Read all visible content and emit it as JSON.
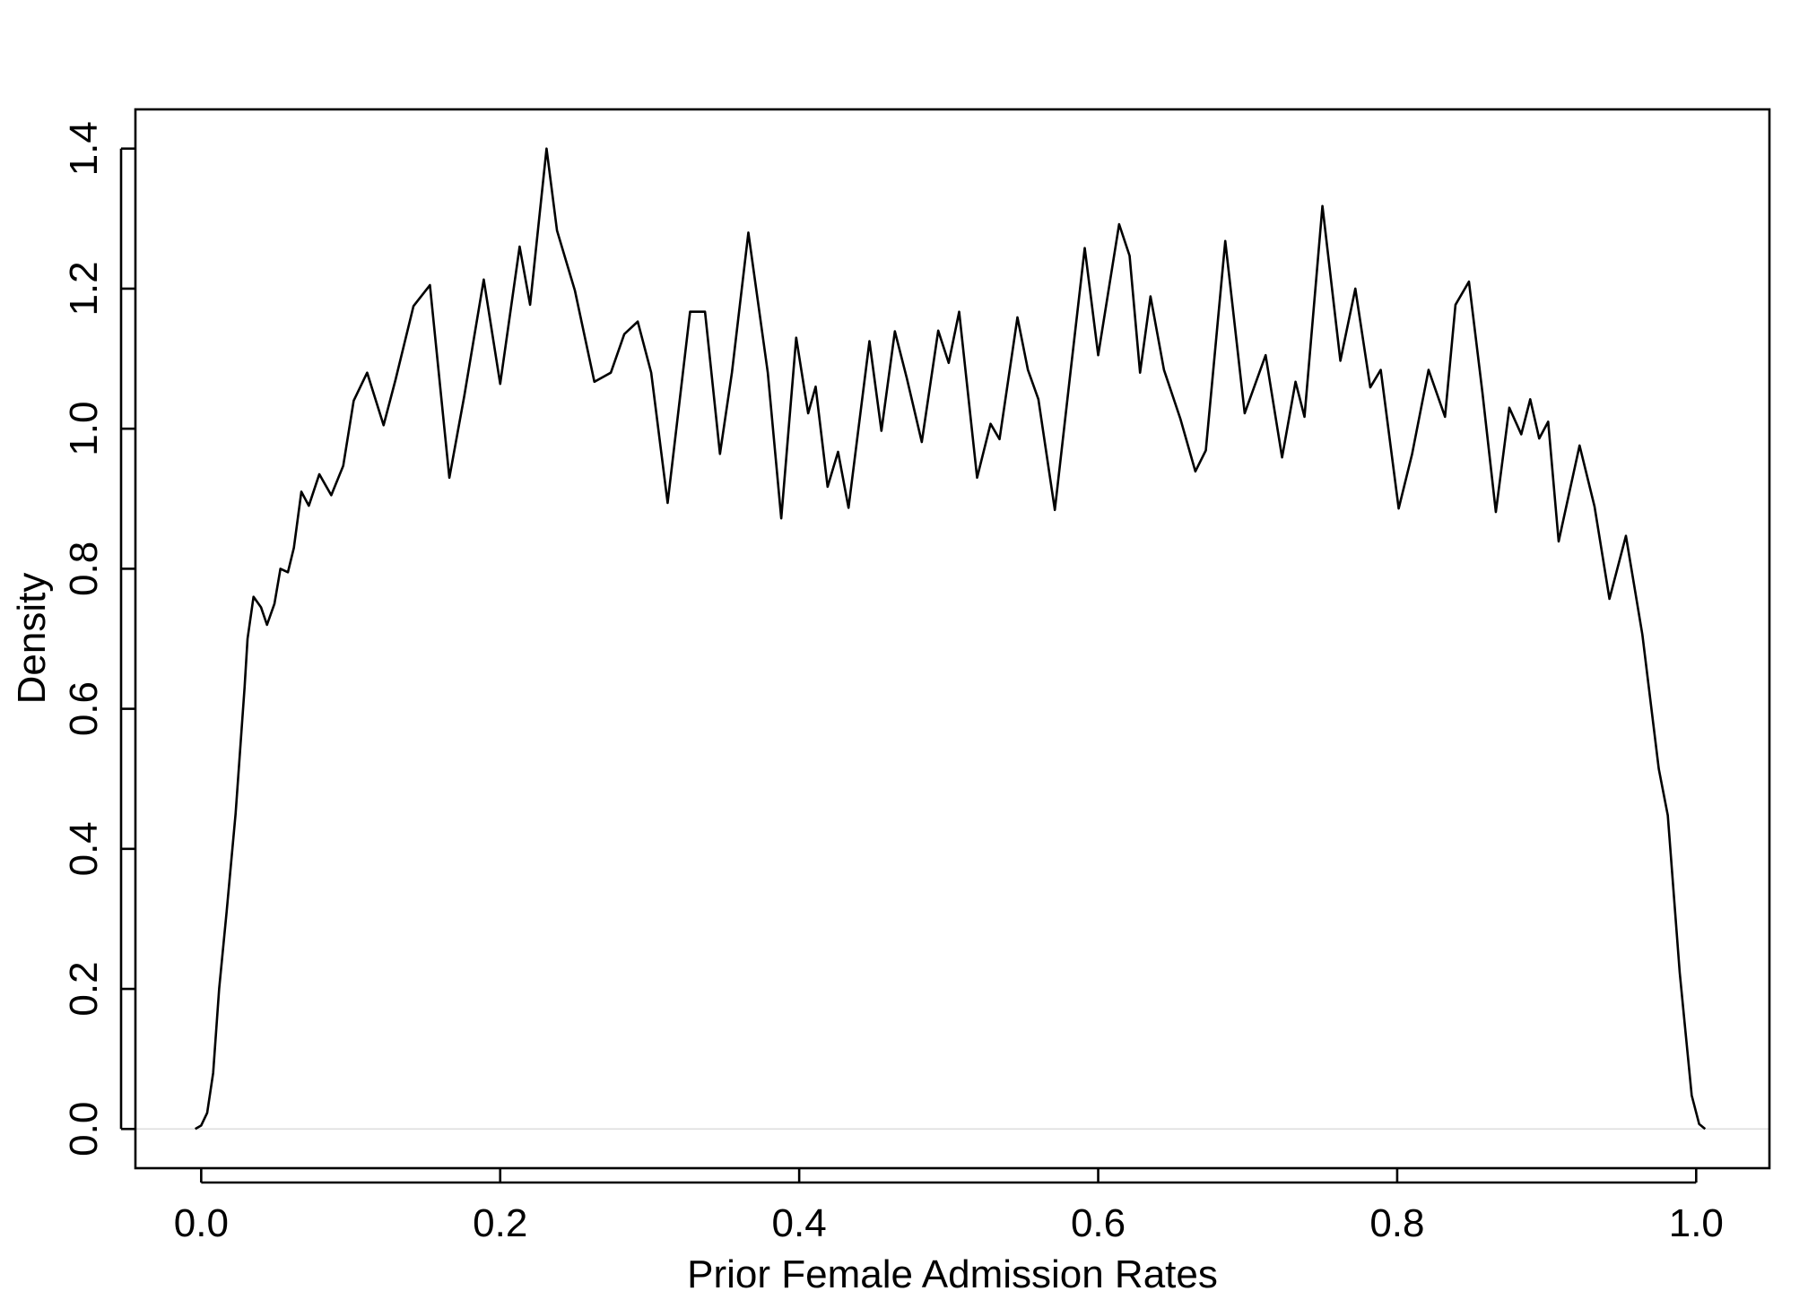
{
  "chart_data": {
    "type": "line",
    "x_label": "Prior Female Admission Rates",
    "y_label": "Density",
    "xlim": [
      -0.044,
      1.049
    ],
    "ylim": [
      -0.056,
      1.456
    ],
    "xticks": [
      {
        "value": 0,
        "label": "0.0"
      },
      0.2,
      0.4,
      0.6,
      0.8,
      {
        "value": 1,
        "label": "1.0"
      }
    ],
    "yticks": [
      {
        "value": 0,
        "label": "0.0"
      },
      0.2,
      0.4,
      0.6,
      0.8,
      {
        "value": 1,
        "label": "1.0"
      },
      1.2,
      1.4
    ],
    "zero_line": true,
    "series": [
      {
        "name": "density",
        "color": "#000000",
        "x": [
          -0.004,
          0,
          0.004,
          0.008,
          0.012,
          0.017,
          0.023,
          0.029,
          0.031,
          0.035,
          0.04,
          0.044,
          0.049,
          0.053,
          0.058,
          0.062,
          0.067,
          0.072,
          0.079,
          0.087,
          0.095,
          0.102,
          0.111,
          0.122,
          0.13,
          0.142,
          0.153,
          0.166,
          0.176,
          0.189,
          0.2,
          0.213,
          0.22,
          0.231,
          0.238,
          0.25,
          0.263,
          0.274,
          0.283,
          0.292,
          0.301,
          0.312,
          0.327,
          0.337,
          0.347,
          0.355,
          0.366,
          0.379,
          0.388,
          0.398,
          0.406,
          0.411,
          0.419,
          0.426,
          0.433,
          0.447,
          0.455,
          0.464,
          0.472,
          0.482,
          0.493,
          0.5,
          0.507,
          0.519,
          0.528,
          0.534,
          0.546,
          0.553,
          0.56,
          0.571,
          0.581,
          0.591,
          0.6,
          0.614,
          0.621,
          0.628,
          0.635,
          0.644,
          0.655,
          0.665,
          0.672,
          0.685,
          0.698,
          0.712,
          0.723,
          0.732,
          0.738,
          0.75,
          0.762,
          0.772,
          0.782,
          0.789,
          0.801,
          0.81,
          0.821,
          0.832,
          0.839,
          0.848,
          0.857,
          0.866,
          0.875,
          0.883,
          0.889,
          0.895,
          0.901,
          0.908,
          0.922,
          0.932,
          0.942,
          0.953,
          0.964,
          0.975,
          0.981,
          0.989,
          0.997,
          1.002,
          1.006
        ],
        "values": [
          0,
          0.005,
          0.023,
          0.08,
          0.2,
          0.31,
          0.45,
          0.63,
          0.7,
          0.76,
          0.745,
          0.72,
          0.75,
          0.8,
          0.795,
          0.83,
          0.91,
          0.89,
          0.935,
          0.905,
          0.947,
          1.04,
          1.08,
          1.005,
          1.07,
          1.175,
          1.205,
          0.93,
          1.047,
          1.213,
          1.064,
          1.26,
          1.177,
          1.4,
          1.283,
          1.197,
          1.067,
          1.08,
          1.135,
          1.153,
          1.08,
          0.894,
          1.167,
          1.167,
          0.964,
          1.08,
          1.28,
          1.08,
          0.872,
          1.13,
          1.022,
          1.06,
          0.917,
          0.967,
          0.887,
          1.125,
          0.997,
          1.139,
          1.072,
          0.981,
          1.14,
          1.094,
          1.167,
          0.93,
          1.007,
          0.985,
          1.159,
          1.084,
          1.042,
          0.884,
          1.072,
          1.258,
          1.105,
          1.292,
          1.247,
          1.08,
          1.189,
          1.084,
          1.014,
          0.939,
          0.969,
          1.268,
          1.022,
          1.105,
          0.959,
          1.067,
          1.017,
          1.318,
          1.097,
          1.2,
          1.059,
          1.084,
          0.886,
          0.964,
          1.084,
          1.017,
          1.177,
          1.21,
          1.052,
          0.881,
          1.03,
          0.992,
          1.042,
          0.986,
          1.01,
          0.839,
          0.976,
          0.889,
          0.757,
          0.847,
          0.706,
          0.514,
          0.448,
          0.223,
          0.048,
          0.007,
          0
        ]
      }
    ]
  }
}
